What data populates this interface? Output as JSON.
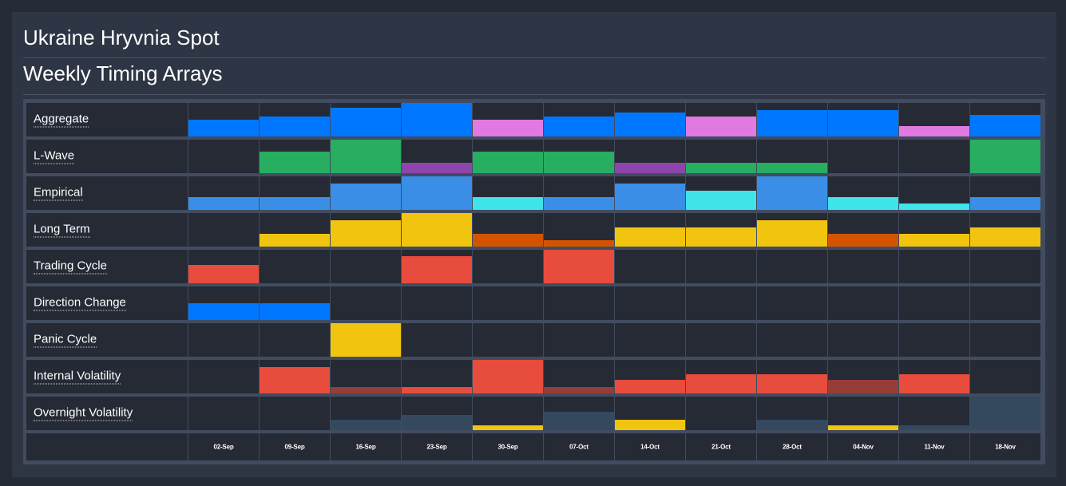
{
  "header": {
    "title": "Ukraine Hryvnia Spot",
    "subtitle": "Weekly Timing Arrays"
  },
  "chart_data": {
    "type": "heatmap",
    "title": "Weekly Timing Arrays",
    "dates": [
      "02-Sep",
      "09-Sep",
      "16-Sep",
      "23-Sep",
      "30-Sep",
      "07-Oct",
      "14-Oct",
      "21-Oct",
      "28-Oct",
      "04-Nov",
      "11-Nov",
      "18-Nov"
    ],
    "value_scale": [
      0,
      1
    ],
    "colors": {
      "blue": "#0077ff",
      "pink": "#e07ae0",
      "green": "#27ae60",
      "purple": "#8e44ad",
      "lightblue": "#3a8ee6",
      "cyan": "#3ee4e8",
      "yellow": "#f1c40f",
      "orange": "#d35400",
      "red": "#e74c3c",
      "darkred": "#963d37",
      "slate": "#34495e",
      "cell": "#262a34"
    },
    "rows": [
      {
        "name": "Aggregate",
        "values": [
          0.5,
          0.6,
          0.85,
          1.0,
          0.5,
          0.6,
          0.72,
          0.6,
          0.78,
          0.78,
          0.3,
          0.65
        ],
        "colors": [
          "blue",
          "blue",
          "blue",
          "blue",
          "pink",
          "blue",
          "blue",
          "pink",
          "blue",
          "blue",
          "pink",
          "blue"
        ]
      },
      {
        "name": "L-Wave",
        "values": [
          0,
          0.65,
          1.0,
          0.3,
          0.65,
          0.65,
          0.3,
          0.3,
          0.3,
          0,
          0,
          1.0
        ],
        "colors": [
          "green",
          "green",
          "green",
          "purple",
          "green",
          "green",
          "purple",
          "green",
          "green",
          "green",
          "green",
          "green"
        ]
      },
      {
        "name": "Empirical",
        "values": [
          0.38,
          0.38,
          0.78,
          1.0,
          0.38,
          0.38,
          0.78,
          0.58,
          1.0,
          0.38,
          0.19,
          0.38
        ],
        "colors": [
          "lightblue",
          "lightblue",
          "lightblue",
          "lightblue",
          "cyan",
          "lightblue",
          "lightblue",
          "cyan",
          "lightblue",
          "cyan",
          "cyan",
          "lightblue"
        ]
      },
      {
        "name": "Long Term",
        "values": [
          0,
          0.38,
          0.78,
          1.0,
          0.38,
          0.19,
          0.58,
          0.58,
          0.78,
          0.38,
          0.38,
          0.58
        ],
        "colors": [
          "yellow",
          "yellow",
          "yellow",
          "yellow",
          "orange",
          "orange",
          "yellow",
          "yellow",
          "yellow",
          "orange",
          "yellow",
          "yellow"
        ]
      },
      {
        "name": "Trading Cycle",
        "values": [
          0.55,
          0,
          0,
          0.8,
          0,
          1.0,
          0,
          0,
          0,
          0,
          0,
          0
        ],
        "colors": [
          "red",
          "red",
          "red",
          "red",
          "red",
          "red",
          "red",
          "red",
          "red",
          "red",
          "red",
          "red"
        ]
      },
      {
        "name": "Direction Change",
        "values": [
          0.5,
          0.5,
          0,
          0,
          0,
          0,
          0,
          0,
          0,
          0,
          0,
          0
        ],
        "colors": [
          "blue",
          "blue",
          "blue",
          "blue",
          "blue",
          "blue",
          "blue",
          "blue",
          "blue",
          "blue",
          "blue",
          "blue"
        ]
      },
      {
        "name": "Panic Cycle",
        "values": [
          0,
          0,
          1.0,
          0,
          0,
          0,
          0,
          0,
          0,
          0,
          0,
          0
        ],
        "colors": [
          "yellow",
          "yellow",
          "yellow",
          "yellow",
          "yellow",
          "yellow",
          "yellow",
          "yellow",
          "yellow",
          "yellow",
          "yellow",
          "yellow"
        ]
      },
      {
        "name": "Internal Volatility",
        "values": [
          0,
          0.78,
          0.2,
          0.2,
          1.0,
          0.2,
          0.4,
          0.58,
          0.58,
          0.4,
          0.58,
          0
        ],
        "colors": [
          "red",
          "red",
          "darkred",
          "red",
          "red",
          "darkred",
          "red",
          "red",
          "red",
          "darkred",
          "red",
          "red"
        ]
      },
      {
        "name": "Overnight Volatility",
        "values": [
          0,
          0,
          0.3,
          0.45,
          0.15,
          0.55,
          0.3,
          0,
          0.3,
          0.15,
          0.15,
          1.0
        ],
        "colors": [
          "slate",
          "slate",
          "slate",
          "slate",
          "yellow",
          "slate",
          "yellow",
          "slate",
          "slate",
          "yellow",
          "slate",
          "slate"
        ]
      }
    ]
  }
}
